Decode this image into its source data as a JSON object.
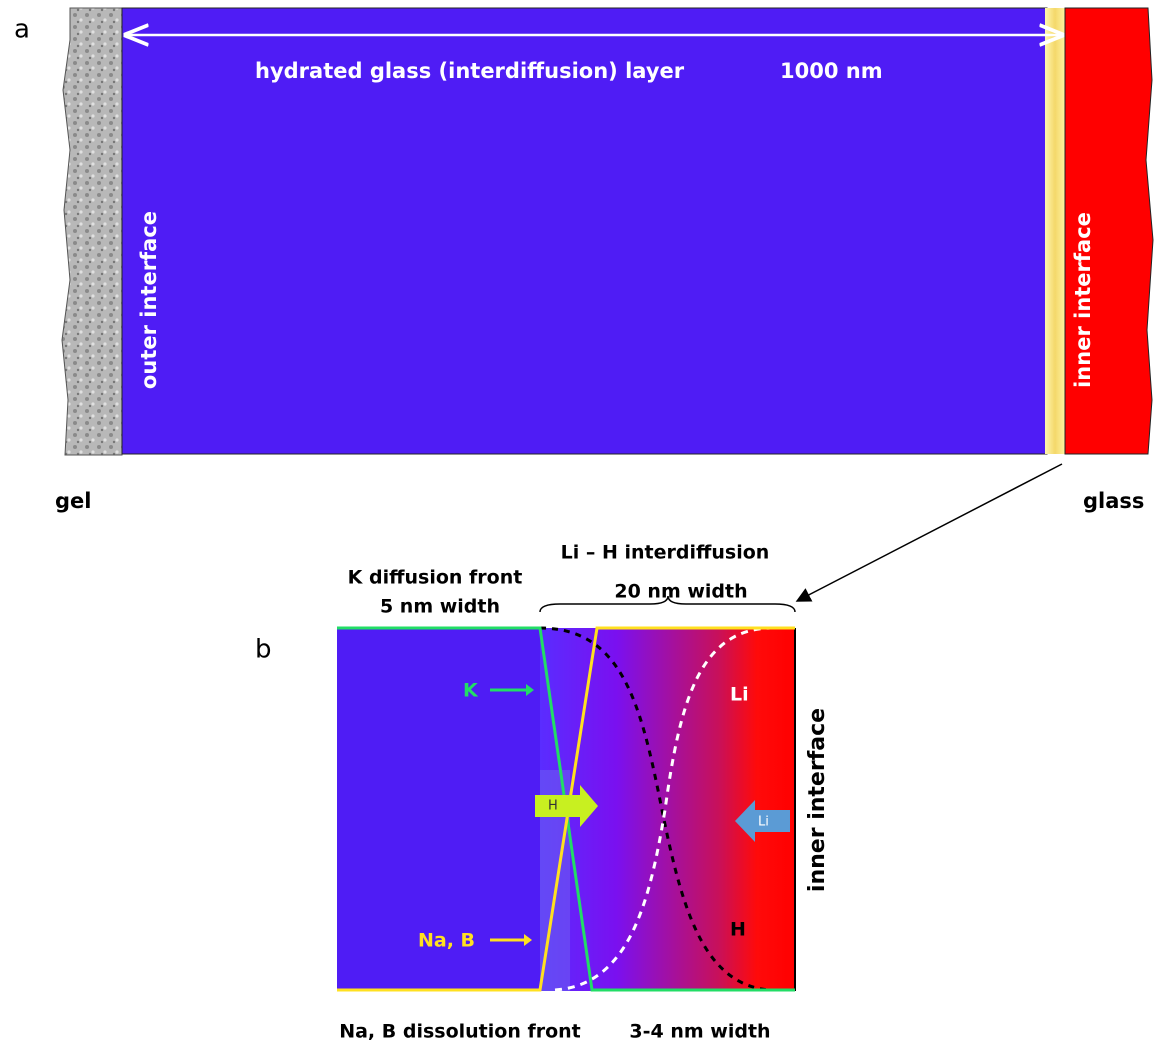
{
  "panel_a": {
    "label": "a",
    "layer_title": "hydrated glass (interdiffusion) layer",
    "layer_width": "1000 nm",
    "outer_interface": "outer interface",
    "inner_interface": "inner interface",
    "left_material": "gel",
    "right_material": "glass"
  },
  "panel_b": {
    "label": "b",
    "interdiffusion_title": "Li – H interdiffusion",
    "interdiffusion_width": "20 nm width",
    "k_front_title": "K diffusion front",
    "k_front_width": "5 nm width",
    "k_label": "K",
    "nab_label": "Na, B",
    "h_arrow": "H",
    "li_arrow": "Li",
    "li_curve": "Li",
    "h_curve": "H",
    "inner_interface": "inner interface",
    "dissolution_front": "Na, B dissolution front",
    "dissolution_width": "3-4 nm width"
  }
}
